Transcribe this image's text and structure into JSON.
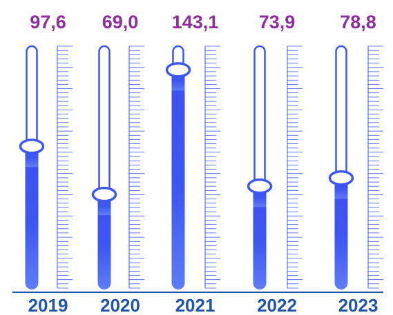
{
  "chart_data": {
    "type": "bar",
    "style": "thermometer-slider",
    "categories": [
      "2019",
      "2020",
      "2021",
      "2022",
      "2023"
    ],
    "values": [
      97.6,
      69.0,
      143.1,
      73.9,
      78.8
    ],
    "value_labels": [
      "97,6",
      "69,0",
      "143,1",
      "73,9",
      "78,8"
    ],
    "title": "",
    "xlabel": "",
    "ylabel": "",
    "grid": false,
    "colors": {
      "value_label": "#8e2e9c",
      "category_label": "#2255a8",
      "bar_fill": "#3d57f2",
      "tube_stroke": "#3d57f2",
      "scale_lines": "#3d57f2",
      "baseline": "#2255a8"
    }
  }
}
